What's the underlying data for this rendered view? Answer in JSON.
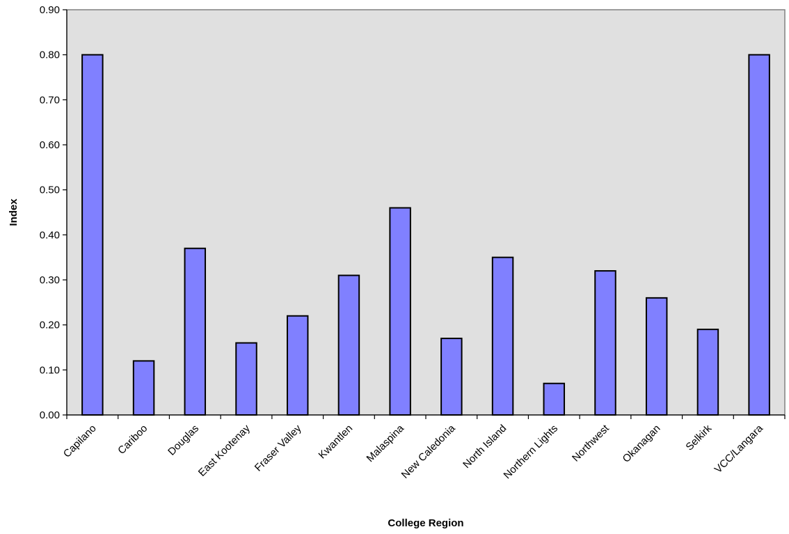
{
  "chart_data": {
    "type": "bar",
    "title": "",
    "xlabel": "College Region",
    "ylabel": "Index",
    "categories": [
      "Capilano",
      "Cariboo",
      "Douglas",
      "East Kootenay",
      "Fraser Valley",
      "Kwantlen",
      "Malaspina",
      "New Caledonia",
      "North Island",
      "Northern Lights",
      "Northwest",
      "Okanagan",
      "Selkirk",
      "VCC/Langara"
    ],
    "values": [
      0.8,
      0.12,
      0.37,
      0.16,
      0.22,
      0.31,
      0.46,
      0.17,
      0.35,
      0.07,
      0.32,
      0.26,
      0.19,
      0.8
    ],
    "ylim": [
      0,
      0.9
    ],
    "yticks": [
      "0.00",
      "0.10",
      "0.20",
      "0.30",
      "0.40",
      "0.50",
      "0.60",
      "0.70",
      "0.80",
      "0.90"
    ],
    "grid": false,
    "legend": "none",
    "colors": {
      "bar_fill": "#8080ff",
      "bar_stroke": "#000000",
      "plot_background": "#e0e0e0",
      "plot_border": "#808080"
    }
  }
}
